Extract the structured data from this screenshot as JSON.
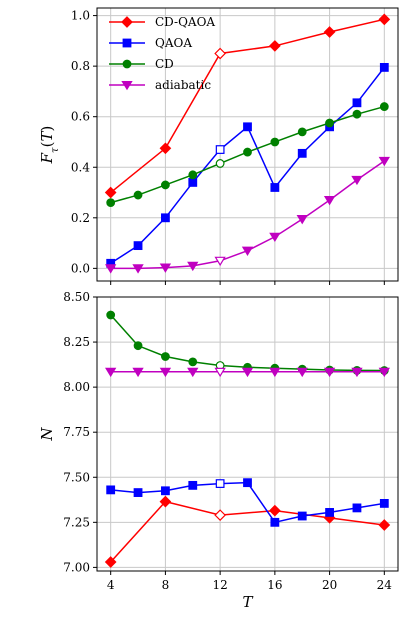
{
  "chart_data": [
    {
      "type": "line",
      "ylabel": "F_τ(T)",
      "xlim": [
        3,
        25
      ],
      "ylim": [
        -0.05,
        1.03
      ],
      "xticks": [
        4,
        8,
        12,
        16,
        20,
        24
      ],
      "yticks": [
        0.0,
        0.2,
        0.4,
        0.6,
        0.8,
        1.0
      ],
      "ytick_labels": [
        "0.0",
        "0.2",
        "0.4",
        "0.6",
        "0.8",
        "1.0"
      ],
      "grid": true,
      "legend": "top-left",
      "series": [
        {
          "name": "CD-QAOA",
          "color": "#ff0000",
          "marker": "diamond",
          "x": [
            4,
            8,
            12,
            16,
            20,
            24
          ],
          "values": [
            0.3,
            0.475,
            0.85,
            0.88,
            0.935,
            0.985
          ],
          "open_point": 12
        },
        {
          "name": "QAOA",
          "color": "#0000ff",
          "marker": "square",
          "x": [
            4,
            6,
            8,
            10,
            12,
            14,
            16,
            18,
            20,
            22,
            24
          ],
          "values": [
            0.02,
            0.09,
            0.2,
            0.34,
            0.47,
            0.56,
            0.32,
            0.455,
            0.56,
            0.655,
            0.795
          ],
          "open_point": 12
        },
        {
          "name": "CD",
          "color": "#008000",
          "marker": "circle",
          "x": [
            4,
            6,
            8,
            10,
            12,
            14,
            16,
            18,
            20,
            22,
            24
          ],
          "values": [
            0.26,
            0.29,
            0.33,
            0.37,
            0.415,
            0.46,
            0.5,
            0.54,
            0.575,
            0.61,
            0.64
          ],
          "open_point": 12
        },
        {
          "name": "adiabatic",
          "color": "#c000c0",
          "marker": "triangle-down",
          "x": [
            4,
            6,
            8,
            10,
            12,
            14,
            16,
            18,
            20,
            22,
            24
          ],
          "values": [
            0.0,
            0.0,
            0.003,
            0.01,
            0.03,
            0.07,
            0.125,
            0.195,
            0.27,
            0.35,
            0.425
          ],
          "open_point": 12
        }
      ]
    },
    {
      "type": "line",
      "xlabel": "T",
      "ylabel": "N",
      "xlim": [
        3,
        25
      ],
      "ylim": [
        6.98,
        8.5
      ],
      "xticks": [
        4,
        8,
        12,
        16,
        20,
        24
      ],
      "yticks": [
        7.0,
        7.25,
        7.5,
        7.75,
        8.0,
        8.25,
        8.5
      ],
      "ytick_labels": [
        "7.00",
        "7.25",
        "7.50",
        "7.75",
        "8.00",
        "8.25",
        "8.50"
      ],
      "grid": true,
      "series": [
        {
          "name": "CD-QAOA",
          "color": "#ff0000",
          "marker": "diamond",
          "x": [
            4,
            8,
            12,
            16,
            20,
            24
          ],
          "values": [
            7.03,
            7.365,
            7.29,
            7.315,
            7.275,
            7.235
          ],
          "open_point": 12
        },
        {
          "name": "QAOA",
          "color": "#0000ff",
          "marker": "square",
          "x": [
            4,
            6,
            8,
            10,
            12,
            14,
            16,
            18,
            20,
            22,
            24
          ],
          "values": [
            7.43,
            7.415,
            7.425,
            7.455,
            7.465,
            7.47,
            7.25,
            7.285,
            7.305,
            7.33,
            7.355
          ],
          "open_point": 12
        },
        {
          "name": "CD",
          "color": "#008000",
          "marker": "circle",
          "x": [
            4,
            6,
            8,
            10,
            12,
            14,
            16,
            18,
            20,
            22,
            24
          ],
          "values": [
            8.4,
            8.23,
            8.17,
            8.14,
            8.12,
            8.11,
            8.105,
            8.1,
            8.095,
            8.093,
            8.092
          ],
          "open_point": 12
        },
        {
          "name": "adiabatic",
          "color": "#c000c0",
          "marker": "triangle-down",
          "x": [
            4,
            6,
            8,
            10,
            12,
            14,
            16,
            18,
            20,
            22,
            24
          ],
          "values": [
            8.085,
            8.085,
            8.085,
            8.085,
            8.085,
            8.085,
            8.085,
            8.085,
            8.085,
            8.085,
            8.085
          ],
          "open_point": 12
        }
      ]
    }
  ]
}
